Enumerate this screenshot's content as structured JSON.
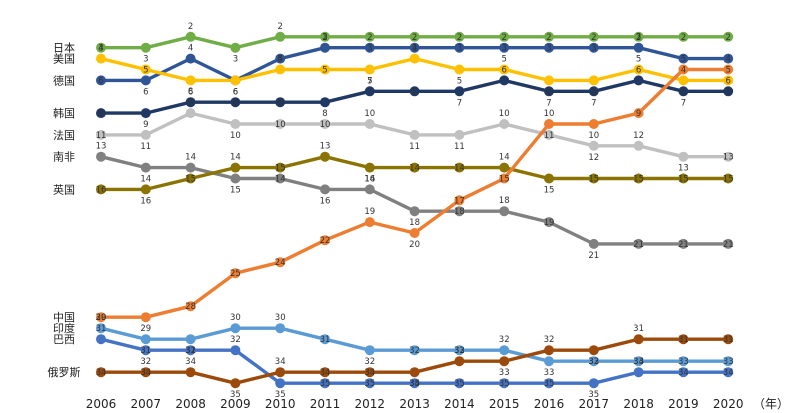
{
  "chart_data": {
    "type": "line",
    "subtype": "rank bump chart",
    "title": "",
    "xlabel": "",
    "ylabel": "",
    "x_unit_label": "（年）",
    "x": [
      2006,
      2007,
      2008,
      2009,
      2010,
      2011,
      2012,
      2013,
      2014,
      2015,
      2016,
      2017,
      2018,
      2019,
      2020
    ],
    "y_axis": "rank (1 at top)",
    "grid": false,
    "legend": "country names at left edge",
    "series": [
      {
        "name": "日本",
        "color": "#70ad47",
        "values": [
          3,
          3,
          2,
          3,
          2,
          2,
          2,
          2,
          2,
          2,
          2,
          2,
          2,
          2,
          2
        ]
      },
      {
        "name": "德国",
        "color": "#2f5597",
        "values": [
          6,
          6,
          4,
          6,
          4,
          3,
          3,
          3,
          3,
          3,
          3,
          3,
          3,
          4,
          4
        ]
      },
      {
        "name": "美国",
        "color": "#ffc000",
        "values": [
          4,
          5,
          6,
          6,
          5,
          5,
          5,
          4,
          5,
          5,
          6,
          6,
          5,
          6,
          6
        ]
      },
      {
        "name": "韩国",
        "color": "#1f3864",
        "values": [
          9,
          9,
          8,
          8,
          8,
          8,
          7,
          7,
          7,
          6,
          7,
          7,
          6,
          7,
          7
        ]
      },
      {
        "name": "法国",
        "color": "#c0c0c0",
        "values": [
          11,
          11,
          9,
          10,
          10,
          10,
          10,
          11,
          11,
          10,
          11,
          12,
          12,
          13,
          13
        ]
      },
      {
        "name": "南非",
        "color": "#808080",
        "values": [
          13,
          14,
          14,
          15,
          15,
          16,
          16,
          18,
          18,
          18,
          19,
          21,
          21,
          21,
          21
        ]
      },
      {
        "name": "英国",
        "color": "#8b7300",
        "values": [
          16,
          16,
          15,
          14,
          14,
          13,
          14,
          14,
          14,
          14,
          15,
          15,
          15,
          15,
          15
        ]
      },
      {
        "name": "中国",
        "color": "#ed7d31",
        "values": [
          29,
          29,
          28,
          25,
          24,
          22,
          19,
          20,
          17,
          15,
          10,
          10,
          9,
          5,
          5
        ]
      },
      {
        "name": "印度",
        "color": "#5b9bd5",
        "values": [
          30,
          31,
          31,
          30,
          30,
          31,
          32,
          32,
          32,
          32,
          33,
          33,
          33,
          33,
          33
        ]
      },
      {
        "name": "巴西",
        "color": "#4472c4",
        "values": [
          31,
          32,
          32,
          32,
          35,
          35,
          35,
          35,
          35,
          35,
          35,
          35,
          34,
          34,
          34
        ]
      },
      {
        "name": "俄罗斯",
        "color": "#9c4a0b",
        "values": [
          34,
          34,
          34,
          35,
          34,
          34,
          34,
          34,
          33,
          33,
          32,
          32,
          31,
          31,
          31
        ]
      }
    ]
  }
}
